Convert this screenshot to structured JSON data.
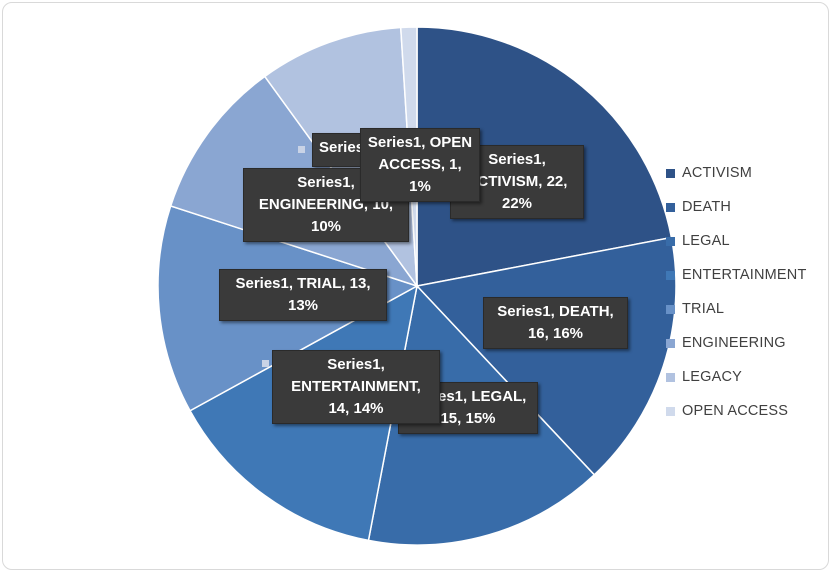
{
  "chart_data": {
    "type": "pie",
    "categories": [
      "ACTIVISM",
      "DEATH",
      "LEGAL",
      "ENTERTAINMENT",
      "TRIAL",
      "ENGINEERING",
      "LEGACY",
      "OPEN ACCESS"
    ],
    "series": [
      {
        "name": "Series1",
        "values": [
          22,
          16,
          15,
          14,
          13,
          10,
          9,
          1
        ]
      }
    ],
    "colors": [
      "#2e5287",
      "#33609b",
      "#386ca9",
      "#3f78b6",
      "#6891c7",
      "#8aa6d2",
      "#b1c2e0",
      "#d0daec"
    ],
    "legend_position": "right",
    "data_labels": [
      {
        "line1": "Series1,",
        "line2": "ACTIVISM, 22,",
        "line3": "22%"
      },
      {
        "line1": "Series1, DEATH,",
        "line2": "16, 16%",
        "line3": ""
      },
      {
        "line1": "Series1, LEGAL,",
        "line2": "15, 15%",
        "line3": ""
      },
      {
        "line1": "Series1,",
        "line2": "ENTERTAINMENT,",
        "line3": "14, 14%"
      },
      {
        "line1": "Series1, TRIAL, 13,",
        "line2": "13%",
        "line3": ""
      },
      {
        "line1": "Series1,",
        "line2": "ENGINEERING, 10,",
        "line3": "10%"
      },
      {
        "line1": "Series1,",
        "line2": "",
        "line3": ""
      },
      {
        "line1": "Series1, OPEN",
        "line2": "ACCESS, 1, 1%",
        "line3": ""
      }
    ]
  }
}
